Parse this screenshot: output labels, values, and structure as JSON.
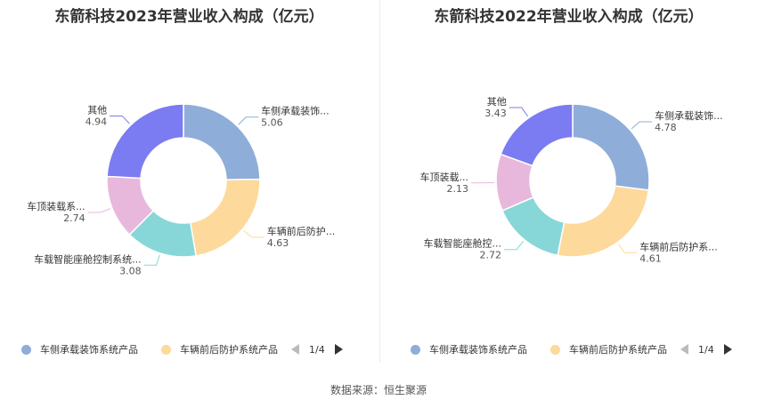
{
  "source_note": "数据来源：恒生聚源",
  "pager": {
    "text": "1/4"
  },
  "chart_data": [
    {
      "type": "pie",
      "title": "东箭科技2023年营业收入构成（亿元）",
      "colors": [
        "#8eadd9",
        "#fdd99b",
        "#88d7d8",
        "#e8b8dc",
        "#7b7bf2"
      ],
      "categories": [
        "车侧承载装饰系统产品",
        "车辆前后防护系统产品",
        "车载智能座舱控制系统产品",
        "车顶装载系统产品",
        "其他"
      ],
      "labels": [
        "车侧承载装饰...",
        "车辆前后防护...",
        "车载智能座舱控制系统...",
        "车顶装载系...",
        "其他"
      ],
      "values": [
        5.06,
        4.63,
        3.08,
        2.74,
        4.94
      ],
      "value_labels": [
        "5.06",
        "4.63",
        "3.08",
        "2.74",
        "4.94"
      ],
      "legend": [
        "车侧承载装饰系统产品",
        "车辆前后防护系统产品"
      ]
    },
    {
      "type": "pie",
      "title": "东箭科技2022年营业收入构成（亿元）",
      "colors": [
        "#8eadd9",
        "#fdd99b",
        "#88d7d8",
        "#e8b8dc",
        "#7b7bf2"
      ],
      "categories": [
        "车侧承载装饰系统产品",
        "车辆前后防护系统产品",
        "车载智能座舱控制系统产品",
        "车顶装载系统产品",
        "其他"
      ],
      "labels": [
        "车侧承载装饰...",
        "车辆前后防护系...",
        "车载智能座舱控...",
        "车顶装载...",
        "其他"
      ],
      "values": [
        4.78,
        4.61,
        2.72,
        2.13,
        3.43
      ],
      "value_labels": [
        "4.78",
        "4.61",
        "2.72",
        "2.13",
        "3.43"
      ],
      "legend": [
        "车侧承载装饰系统产品",
        "车辆前后防护系统产品"
      ]
    }
  ]
}
